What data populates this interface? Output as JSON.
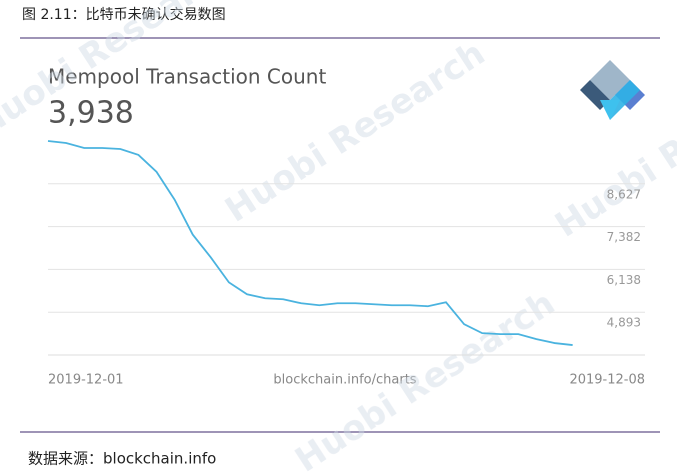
{
  "header": "图 2.11：比特币未确认交易数图",
  "footer": "数据来源：blockchain.info",
  "watermark": "Huobi Research",
  "chart_data": {
    "type": "line",
    "title": "Mempool Transaction Count",
    "current": "3,938",
    "source_label": "blockchain.info/charts",
    "color": "#4ab3df",
    "grid": true,
    "categories": [
      null,
      null,
      null,
      null,
      null,
      null,
      null,
      null,
      null,
      null,
      null,
      null,
      null,
      null,
      null,
      null,
      null,
      null,
      null,
      null,
      null,
      null,
      null,
      null,
      null,
      null,
      null,
      null,
      null,
      null,
      null,
      null,
      null,
      null
    ],
    "values": [
      9871,
      9813,
      9668,
      9668,
      9639,
      9466,
      8973,
      8163,
      7150,
      6485,
      5761,
      5414,
      5298,
      5269,
      5153,
      5096,
      5153,
      5153,
      5125,
      5096,
      5096,
      5067,
      5182,
      4546,
      4285,
      4256,
      4256,
      4112,
      3996,
      3938,
      null,
      null,
      null,
      null
    ],
    "xticks": [
      {
        "value": 0,
        "label": "2019-12-01"
      },
      {
        "value": 33,
        "label": "2019-12-08"
      }
    ],
    "ylim": [
      3649,
      9871
    ],
    "yticks": [
      {
        "value": 4893,
        "label": "4,893"
      },
      {
        "value": 6138,
        "label": "6,138"
      },
      {
        "value": 7382,
        "label": "7,382"
      },
      {
        "value": 8627,
        "label": "8,627"
      }
    ]
  }
}
